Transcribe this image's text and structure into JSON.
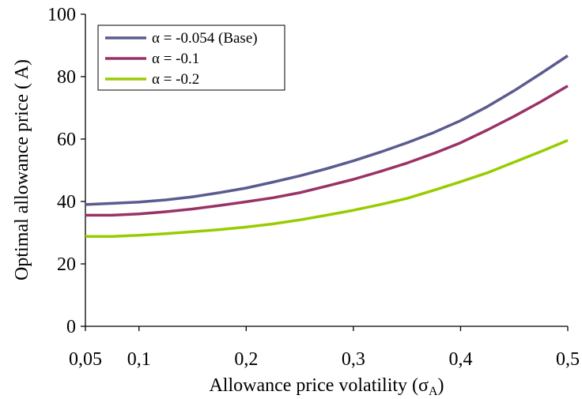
{
  "chart_data": {
    "type": "line",
    "title": "",
    "xlabel": "Allowance price volatility (σA)",
    "xlabel_parts": {
      "text": "Allowance price volatility (σ",
      "sub": "A",
      "close": ")"
    },
    "ylabel": "Optimal  allowance price (   A)",
    "x": [
      0.05,
      0.075,
      0.1,
      0.125,
      0.15,
      0.175,
      0.2,
      0.225,
      0.25,
      0.275,
      0.3,
      0.325,
      0.35,
      0.375,
      0.4,
      0.425,
      0.45,
      0.475,
      0.5
    ],
    "xlim": [
      0.05,
      0.5
    ],
    "ylim": [
      0,
      100
    ],
    "x_ticks": [
      0.05,
      0.1,
      0.2,
      0.3,
      0.4,
      0.5
    ],
    "x_tick_labels": [
      "0,05",
      "0,1",
      "0,2",
      "0,3",
      "0,4",
      "0,5"
    ],
    "y_ticks": [
      0,
      20,
      40,
      60,
      80,
      100
    ],
    "y_tick_labels": [
      "0",
      "20",
      "40",
      "60",
      "80",
      "100"
    ],
    "grid": false,
    "legend_position": "top-left",
    "series": [
      {
        "name": "α = -0.054 (Base)",
        "color": "#5b5b8f",
        "values": [
          39.0,
          39.4,
          39.8,
          40.5,
          41.5,
          42.8,
          44.3,
          46.2,
          48.2,
          50.5,
          53.0,
          55.8,
          58.8,
          62.1,
          65.9,
          70.4,
          75.5,
          81.0,
          86.7
        ]
      },
      {
        "name": "α = -0.1",
        "color": "#993366",
        "values": [
          35.6,
          35.6,
          36.0,
          36.7,
          37.6,
          38.7,
          39.9,
          41.2,
          42.8,
          44.9,
          47.1,
          49.6,
          52.3,
          55.4,
          58.8,
          62.9,
          67.3,
          72.0,
          77.0
        ]
      },
      {
        "name": "α = -0.2",
        "color": "#99cc00",
        "values": [
          28.8,
          28.8,
          29.2,
          29.7,
          30.3,
          31.0,
          31.8,
          32.8,
          34.1,
          35.6,
          37.2,
          39.0,
          41.0,
          43.6,
          46.3,
          49.2,
          52.6,
          56.0,
          59.6
        ]
      }
    ]
  }
}
